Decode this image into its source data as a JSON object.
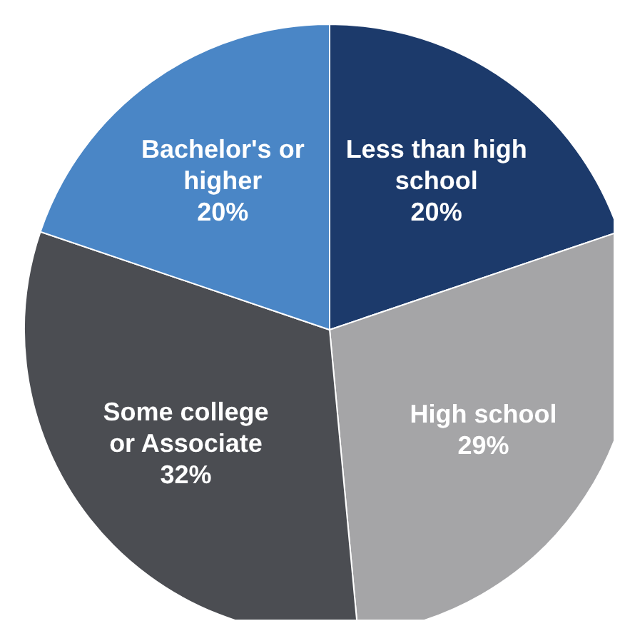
{
  "chart_data": {
    "type": "pie",
    "categories": [
      "Less than high school",
      "High school",
      "Some college or Associate",
      "Bachelor's or higher"
    ],
    "values": [
      20,
      29,
      32,
      20
    ],
    "value_labels": [
      "20%",
      "29%",
      "32%",
      "20%"
    ],
    "colors": [
      "#1c3a6b",
      "#a5a5a7",
      "#4b4d52",
      "#4a86c6"
    ],
    "legend": false
  }
}
